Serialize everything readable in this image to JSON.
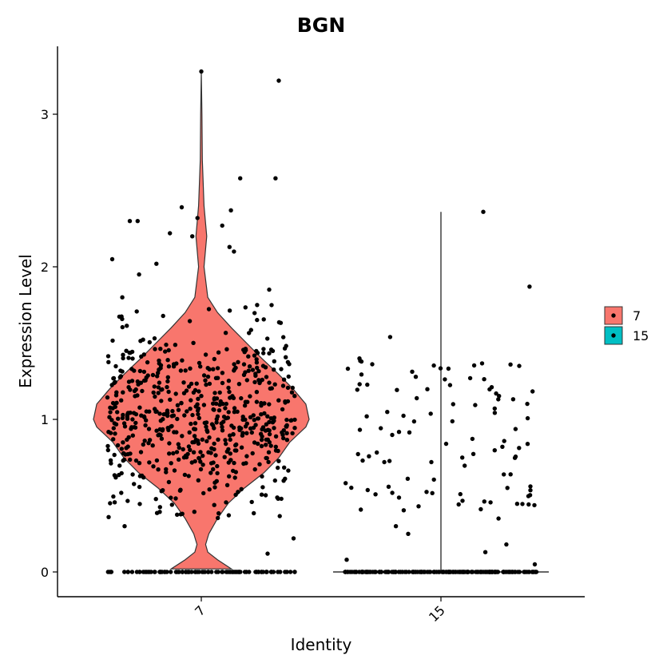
{
  "chart_data": {
    "type": "violin",
    "title": "BGN",
    "xlabel": "Identity",
    "ylabel": "Expression Level",
    "ylim": [
      -0.15,
      3.45
    ],
    "yticks": [
      0,
      1,
      2,
      3
    ],
    "categories": [
      "7",
      "15"
    ],
    "legend": {
      "position": "right",
      "entries": [
        "7",
        "15"
      ]
    },
    "colors": {
      "7": "#F8766D",
      "15": "#00BFC4"
    },
    "groups": [
      {
        "name": "7",
        "fill": "#F8766D",
        "max": 3.28,
        "zero_fraction": 0.12,
        "violin_density": [
          [
            0.02,
            0.28
          ],
          [
            0.08,
            0.15
          ],
          [
            0.13,
            0.06
          ],
          [
            0.18,
            0.04
          ],
          [
            0.25,
            0.07
          ],
          [
            0.35,
            0.15
          ],
          [
            0.45,
            0.25
          ],
          [
            0.55,
            0.4
          ],
          [
            0.65,
            0.58
          ],
          [
            0.75,
            0.72
          ],
          [
            0.85,
            0.82
          ],
          [
            0.95,
            0.97
          ],
          [
            1.0,
            1.0
          ],
          [
            1.1,
            0.97
          ],
          [
            1.2,
            0.85
          ],
          [
            1.3,
            0.71
          ],
          [
            1.4,
            0.56
          ],
          [
            1.5,
            0.42
          ],
          [
            1.6,
            0.28
          ],
          [
            1.7,
            0.15
          ],
          [
            1.8,
            0.06
          ],
          [
            2.0,
            0.025
          ],
          [
            2.2,
            0.05
          ],
          [
            2.4,
            0.025
          ],
          [
            2.7,
            0.01
          ],
          [
            3.0,
            0.006
          ],
          [
            3.28,
            0.0
          ]
        ],
        "points_sample": [
          0,
          0,
          0,
          0.12,
          0.22,
          0.38,
          0.45,
          0.6,
          0.75,
          0.85,
          0.95,
          1.0,
          1.05,
          1.1,
          1.2,
          1.3,
          1.45,
          1.6,
          1.8,
          2.05,
          2.2,
          2.3,
          2.58,
          3.22,
          3.28
        ]
      },
      {
        "name": "15",
        "fill": "#00BFC4",
        "max": 2.36,
        "zero_fraction": 0.68,
        "points_sample": [
          0,
          0,
          0,
          0,
          0.08,
          0.25,
          0.45,
          0.6,
          0.75,
          0.9,
          1.0,
          1.05,
          1.2,
          1.35,
          1.4,
          1.87,
          2.36
        ]
      }
    ]
  }
}
